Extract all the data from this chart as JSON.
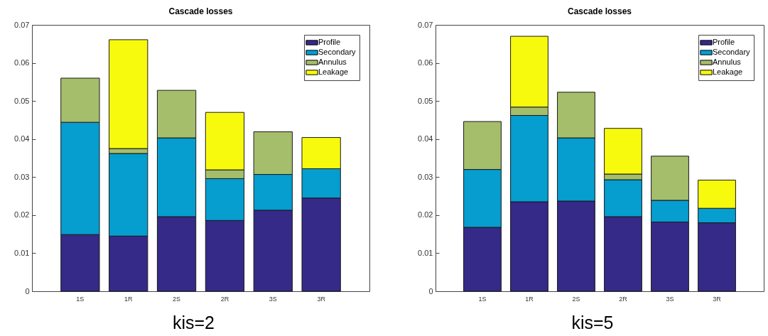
{
  "chart_data": [
    {
      "type": "bar",
      "title": "Cascade losses",
      "categories": [
        "1S",
        "1R",
        "2S",
        "2R",
        "3S",
        "3R"
      ],
      "stacked": true,
      "series": [
        {
          "name": "Profile",
          "color": "#352a87",
          "values": [
            0.0149,
            0.0145,
            0.0196,
            0.0186,
            0.0213,
            0.0245
          ]
        },
        {
          "name": "Secondary",
          "color": "#069dcf",
          "values": [
            0.0295,
            0.0217,
            0.0207,
            0.011,
            0.0094,
            0.0077
          ]
        },
        {
          "name": "Annulus",
          "color": "#a5be6b",
          "values": [
            0.0116,
            0.0013,
            0.0125,
            0.0023,
            0.0112,
            null
          ]
        },
        {
          "name": "Leakage",
          "color": "#f8fa0e",
          "values": [
            null,
            0.0286,
            null,
            0.0151,
            null,
            0.0082
          ]
        }
      ],
      "ylim": [
        0,
        0.07
      ],
      "yticks": [
        0,
        0.01,
        0.02,
        0.03,
        0.04,
        0.05,
        0.06,
        0.07
      ],
      "legend": "top right",
      "annotations": [
        "kis=2"
      ]
    },
    {
      "type": "bar",
      "title": "Cascade losses",
      "categories": [
        "1S",
        "1R",
        "2S",
        "2R",
        "3S",
        "3R"
      ],
      "stacked": true,
      "series": [
        {
          "name": "Profile",
          "color": "#352a87",
          "values": [
            0.0168,
            0.0235,
            0.0237,
            0.0196,
            0.0182,
            0.018
          ]
        },
        {
          "name": "Secondary",
          "color": "#069dcf",
          "values": [
            0.0152,
            0.0227,
            0.0166,
            0.0097,
            0.0057,
            0.0038
          ]
        },
        {
          "name": "Annulus",
          "color": "#a5be6b",
          "values": [
            0.0126,
            0.0022,
            0.012,
            0.0015,
            0.0116,
            null
          ]
        },
        {
          "name": "Leakage",
          "color": "#f8fa0e",
          "values": [
            null,
            0.0186,
            null,
            0.012,
            null,
            0.0074
          ]
        }
      ],
      "ylim": [
        0,
        0.07
      ],
      "yticks": [
        0,
        0.01,
        0.02,
        0.03,
        0.04,
        0.05,
        0.06,
        0.07
      ],
      "legend": "top right",
      "annotations": [
        "kis=5"
      ]
    }
  ]
}
